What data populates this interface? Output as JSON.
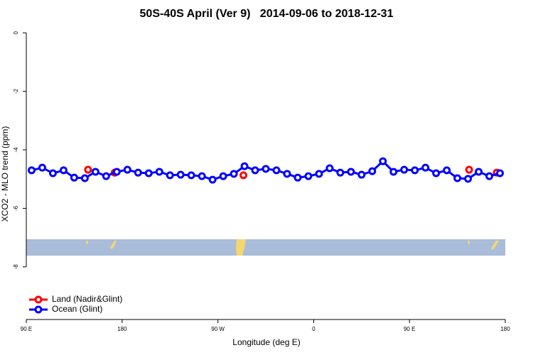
{
  "chart_data": {
    "type": "line",
    "title": "50S-40S April (Ver 9)   2014-09-06 to 2018-12-31",
    "xlabel": "Longitude (deg E)",
    "ylabel": "XCO2 - MLO trend (ppm)",
    "xlim": [
      90,
      540
    ],
    "ylim": [
      -9.8,
      0.2
    ],
    "xticks": [
      {
        "value": 90,
        "label": "90 E"
      },
      {
        "value": 180,
        "label": "180"
      },
      {
        "value": 270,
        "label": "90 W"
      },
      {
        "value": 360,
        "label": "0"
      },
      {
        "value": 450,
        "label": "90 E"
      },
      {
        "value": 540,
        "label": "180"
      }
    ],
    "yticks": [
      0,
      -2,
      -4,
      -6,
      -8
    ],
    "legend": "bottom-left",
    "series": [
      {
        "name": "Land (Nadir&Glint)",
        "color": "#ff0000",
        "lines": false,
        "x": [
          148,
          173,
          294,
          506,
          532
        ],
        "values": [
          -4.68,
          -4.78,
          -4.87,
          -4.68,
          -4.78
        ]
      },
      {
        "name": "Ocean (Glint)",
        "color": "#0000ff",
        "lines": true,
        "x": [
          95,
          105,
          115,
          125,
          135,
          145,
          155,
          165,
          175,
          185,
          195,
          205,
          215,
          225,
          235,
          245,
          255,
          265,
          275,
          285,
          295,
          305,
          315,
          325,
          335,
          345,
          355,
          365,
          375,
          385,
          395,
          405,
          415,
          425,
          435,
          445,
          455,
          465,
          475,
          485,
          495,
          505,
          515,
          525,
          535
        ],
        "values": [
          -4.7,
          -4.61,
          -4.8,
          -4.7,
          -4.95,
          -4.97,
          -4.75,
          -4.9,
          -4.75,
          -4.68,
          -4.78,
          -4.8,
          -4.75,
          -4.87,
          -4.85,
          -4.87,
          -4.9,
          -5.02,
          -4.9,
          -4.82,
          -4.56,
          -4.7,
          -4.65,
          -4.7,
          -4.82,
          -4.95,
          -4.9,
          -4.82,
          -4.63,
          -4.78,
          -4.75,
          -4.85,
          -4.73,
          -4.39,
          -4.75,
          -4.68,
          -4.7,
          -4.61,
          -4.8,
          -4.7,
          -4.97,
          -4.99,
          -4.75,
          -4.9,
          -4.8
        ]
      }
    ]
  }
}
